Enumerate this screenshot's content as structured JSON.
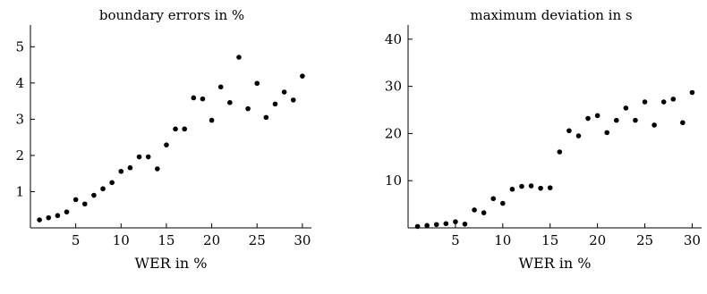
{
  "chart_data": [
    {
      "type": "scatter",
      "title": "boundary errors in %",
      "xlabel": "WER in %",
      "ylabel": "",
      "xlim": [
        0,
        31
      ],
      "ylim": [
        0,
        5.6
      ],
      "xticks": [
        5,
        10,
        15,
        20,
        25,
        30
      ],
      "yticks": [
        1,
        2,
        3,
        4,
        5
      ],
      "grid": false,
      "series": [
        {
          "x": [
            1,
            2,
            3,
            4,
            5,
            6,
            7,
            8,
            9,
            10,
            11,
            12,
            13,
            14,
            15,
            16,
            17,
            18,
            19,
            20,
            21,
            22,
            23,
            24,
            25,
            26,
            27,
            28,
            29,
            30
          ],
          "y": [
            0.22,
            0.28,
            0.34,
            0.44,
            0.78,
            0.66,
            0.9,
            1.08,
            1.25,
            1.56,
            1.66,
            1.96,
            1.96,
            1.63,
            2.29,
            2.73,
            2.73,
            3.59,
            3.56,
            2.97,
            3.89,
            3.46,
            4.71,
            3.29,
            3.99,
            3.05,
            3.42,
            3.75,
            3.53,
            4.19
          ]
        }
      ]
    },
    {
      "type": "scatter",
      "title": "maximum deviation in s",
      "xlabel": "WER in %",
      "ylabel": "",
      "xlim": [
        0,
        31
      ],
      "ylim": [
        0,
        43
      ],
      "xticks": [
        5,
        10,
        15,
        20,
        25,
        30
      ],
      "yticks": [
        10,
        20,
        30,
        40
      ],
      "grid": false,
      "series": [
        {
          "x": [
            1,
            2,
            3,
            4,
            5,
            6,
            7,
            8,
            9,
            10,
            11,
            12,
            13,
            14,
            15,
            16,
            17,
            18,
            19,
            20,
            21,
            22,
            23,
            24,
            25,
            26,
            27,
            28,
            29,
            30
          ],
          "y": [
            0.3,
            0.5,
            0.7,
            0.9,
            1.3,
            0.8,
            3.8,
            3.2,
            6.2,
            5.2,
            8.2,
            8.8,
            8.9,
            8.4,
            8.5,
            16.1,
            20.6,
            19.5,
            23.2,
            23.8,
            20.2,
            22.8,
            25.4,
            22.8,
            26.7,
            21.8,
            26.7,
            27.3,
            22.3,
            28.7
          ]
        }
      ]
    }
  ]
}
